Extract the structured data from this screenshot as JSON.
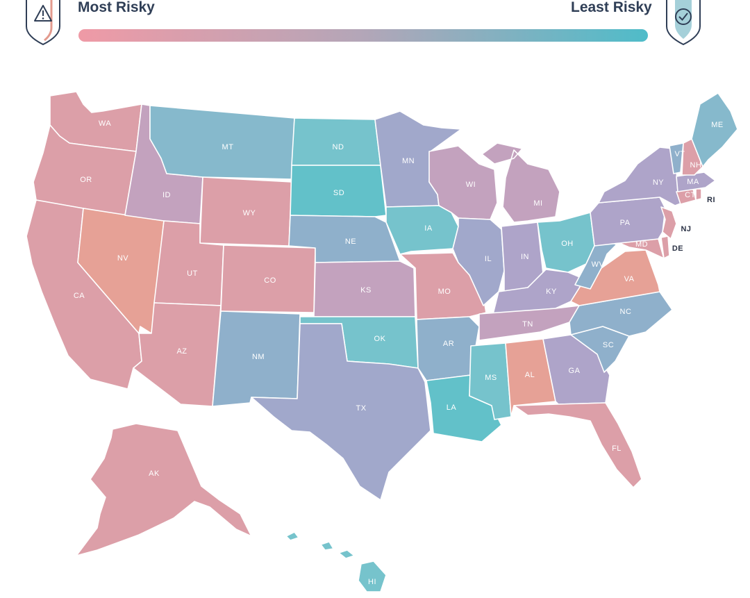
{
  "legend": {
    "most_label": "Most Risky",
    "least_label": "Least Risky",
    "gradient_start": "#ef9aa6",
    "gradient_mid": "#b3a6b8",
    "gradient_end": "#4fbcc9"
  },
  "colors": {
    "pink": "#dc9fa8",
    "salmon": "#e6a196",
    "mauve": "#c3a2be",
    "lavender": "#aea4c9",
    "periwinkle": "#a1a8cb",
    "steel": "#8fb0cb",
    "sky": "#86b9cc",
    "teal": "#76c3cc",
    "aqua": "#62c1c9"
  },
  "states": [
    {
      "code": "WA",
      "color": "pink"
    },
    {
      "code": "OR",
      "color": "pink"
    },
    {
      "code": "CA",
      "color": "pink"
    },
    {
      "code": "NV",
      "color": "salmon"
    },
    {
      "code": "ID",
      "color": "mauve"
    },
    {
      "code": "MT",
      "color": "sky"
    },
    {
      "code": "WY",
      "color": "pink"
    },
    {
      "code": "UT",
      "color": "pink"
    },
    {
      "code": "AZ",
      "color": "pink"
    },
    {
      "code": "CO",
      "color": "pink"
    },
    {
      "code": "NM",
      "color": "steel"
    },
    {
      "code": "ND",
      "color": "teal"
    },
    {
      "code": "SD",
      "color": "aqua"
    },
    {
      "code": "NE",
      "color": "steel"
    },
    {
      "code": "KS",
      "color": "mauve"
    },
    {
      "code": "OK",
      "color": "teal"
    },
    {
      "code": "TX",
      "color": "periwinkle"
    },
    {
      "code": "MN",
      "color": "periwinkle"
    },
    {
      "code": "IA",
      "color": "teal"
    },
    {
      "code": "MO",
      "color": "pink"
    },
    {
      "code": "AR",
      "color": "steel"
    },
    {
      "code": "LA",
      "color": "aqua"
    },
    {
      "code": "WI",
      "color": "mauve"
    },
    {
      "code": "IL",
      "color": "periwinkle"
    },
    {
      "code": "MI",
      "color": "mauve"
    },
    {
      "code": "IN",
      "color": "lavender"
    },
    {
      "code": "OH",
      "color": "teal"
    },
    {
      "code": "KY",
      "color": "lavender"
    },
    {
      "code": "TN",
      "color": "mauve"
    },
    {
      "code": "MS",
      "color": "teal"
    },
    {
      "code": "AL",
      "color": "salmon"
    },
    {
      "code": "GA",
      "color": "lavender"
    },
    {
      "code": "FL",
      "color": "pink"
    },
    {
      "code": "SC",
      "color": "steel"
    },
    {
      "code": "NC",
      "color": "steel"
    },
    {
      "code": "VA",
      "color": "salmon"
    },
    {
      "code": "WV",
      "color": "steel"
    },
    {
      "code": "MD",
      "color": "pink"
    },
    {
      "code": "DE",
      "color": "pink"
    },
    {
      "code": "PA",
      "color": "lavender"
    },
    {
      "code": "NJ",
      "color": "pink"
    },
    {
      "code": "NY",
      "color": "lavender"
    },
    {
      "code": "CT",
      "color": "pink"
    },
    {
      "code": "RI",
      "color": "pink"
    },
    {
      "code": "MA",
      "color": "lavender"
    },
    {
      "code": "VT",
      "color": "steel"
    },
    {
      "code": "NH",
      "color": "pink"
    },
    {
      "code": "ME",
      "color": "sky"
    },
    {
      "code": "AK",
      "color": "pink"
    },
    {
      "code": "HI",
      "color": "teal"
    }
  ]
}
